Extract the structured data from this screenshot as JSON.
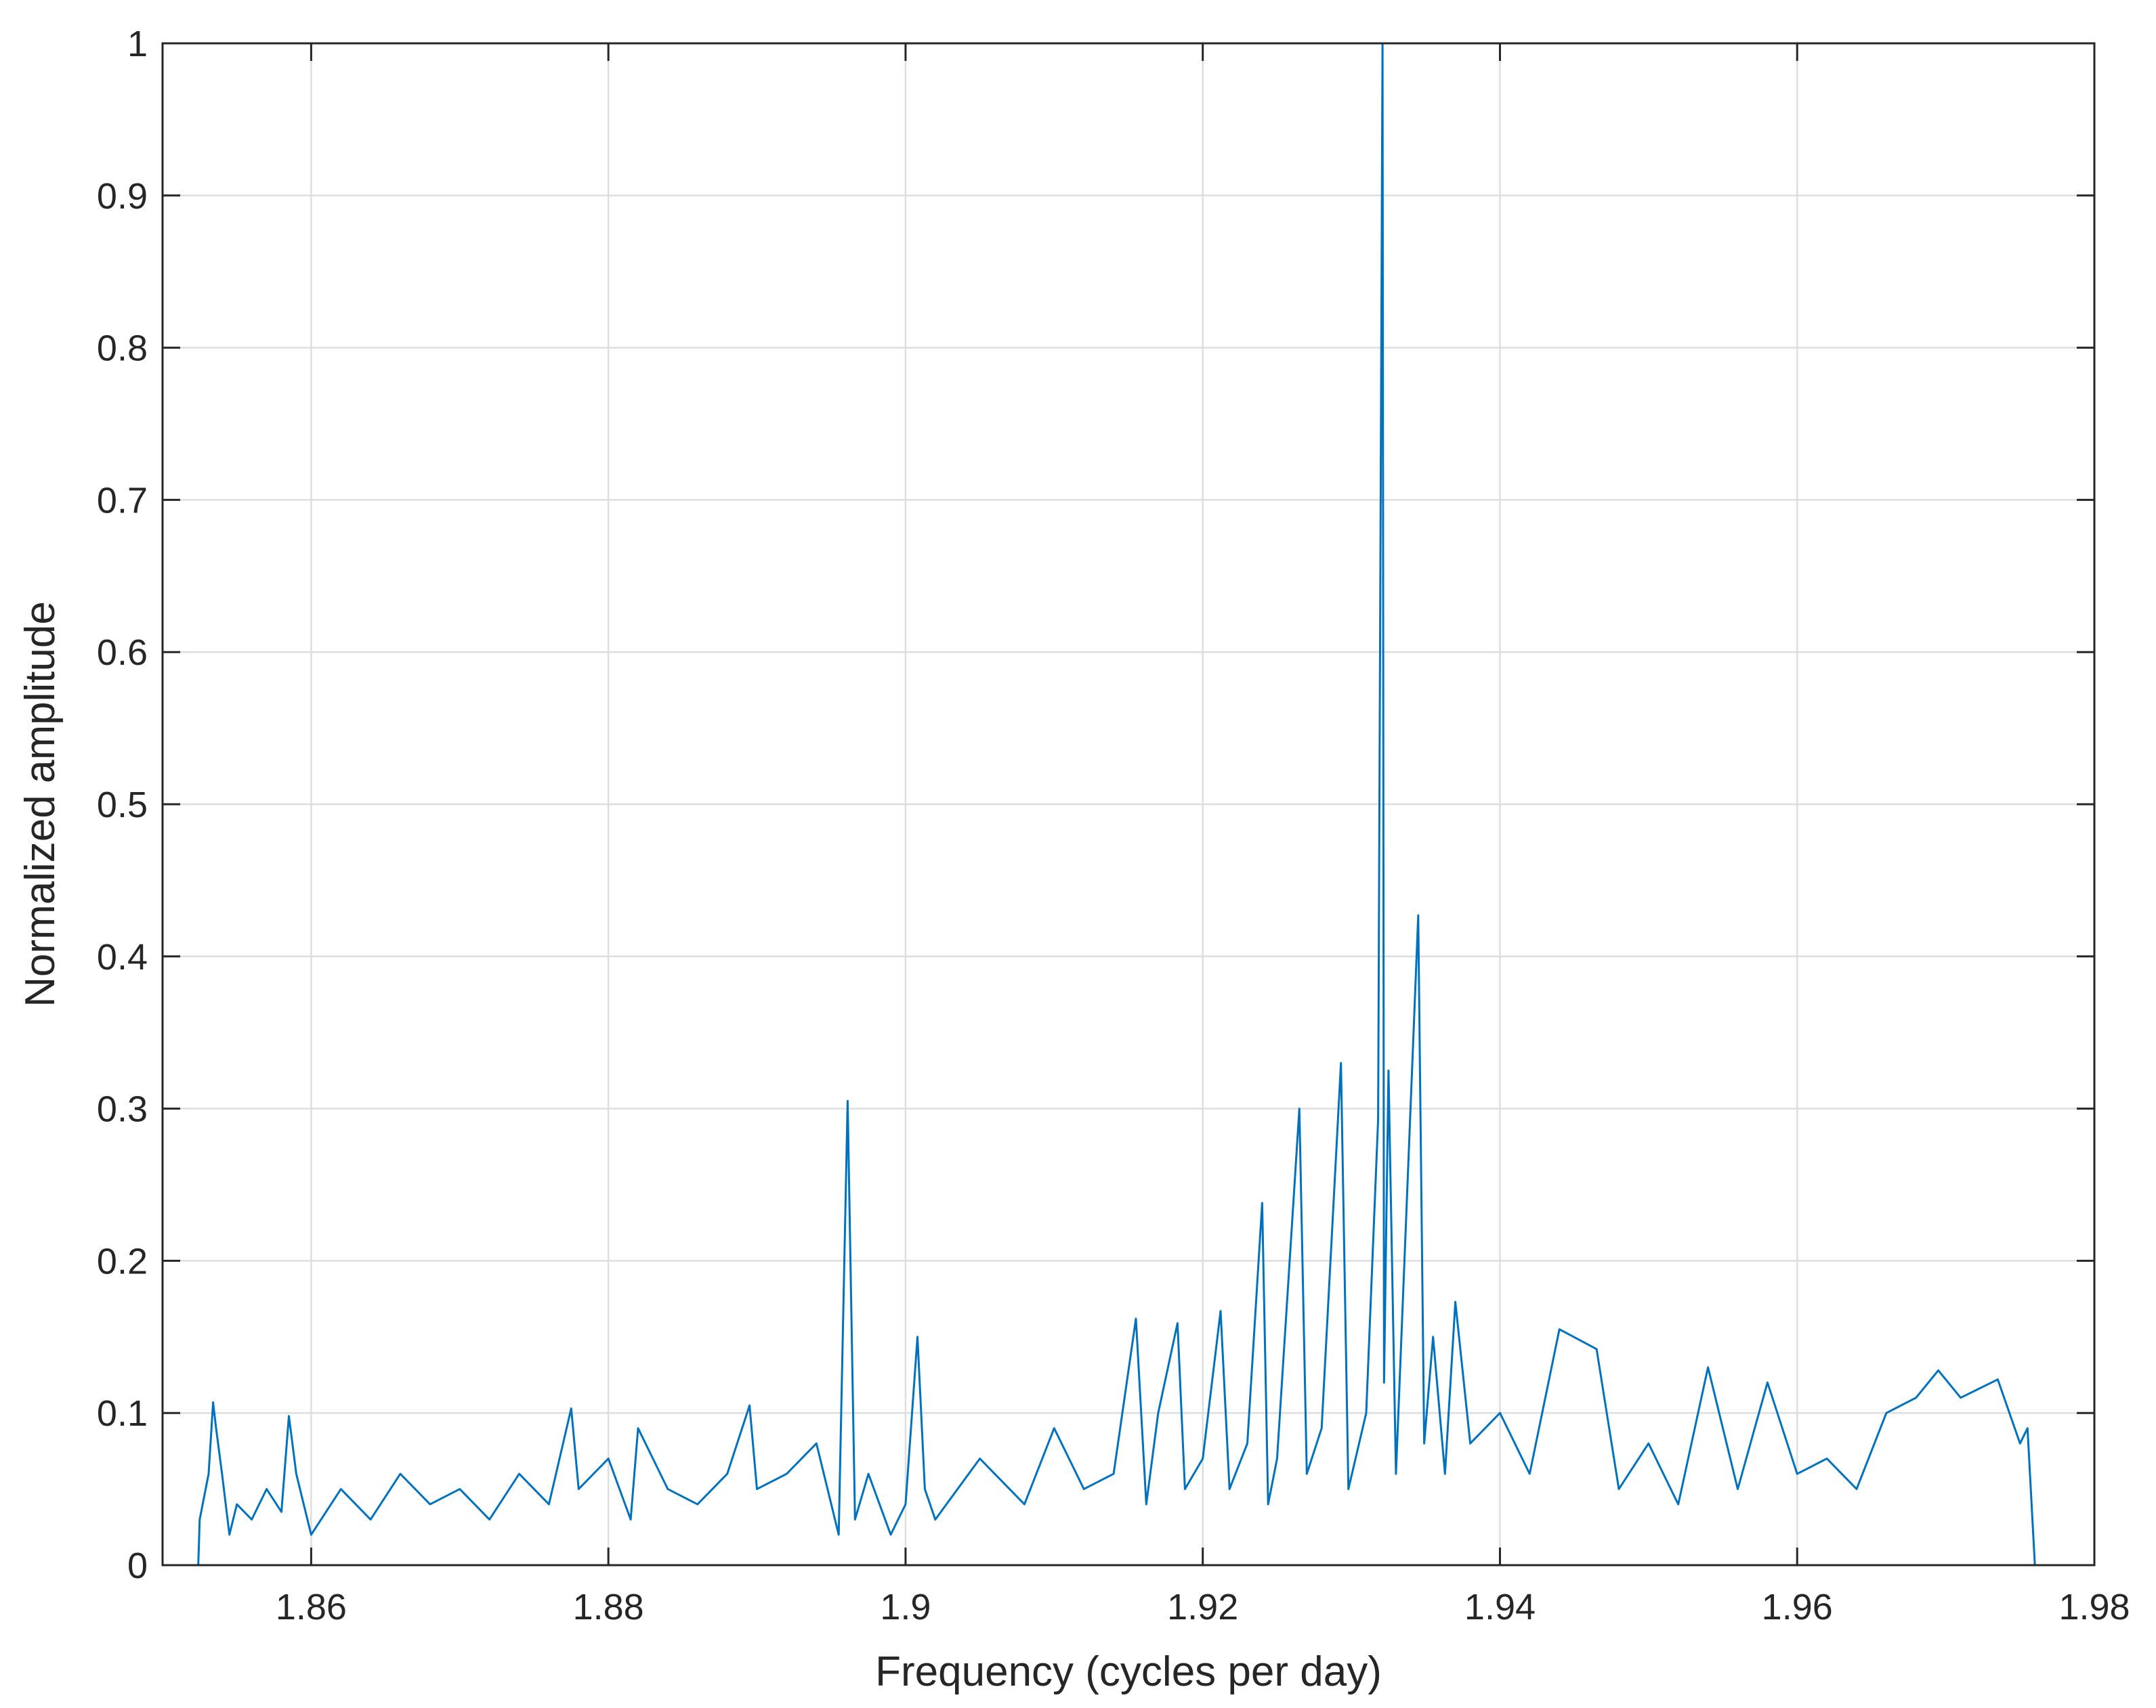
{
  "chart_data": {
    "type": "line",
    "title": "",
    "xlabel": "Frequency (cycles per day)",
    "ylabel": "Normalized amplitude",
    "xlim": [
      1.85,
      1.98
    ],
    "ylim": [
      0,
      1
    ],
    "xticks": [
      1.86,
      1.88,
      1.9,
      1.92,
      1.94,
      1.96,
      1.98
    ],
    "xtick_labels": [
      "1.86",
      "1.88",
      "1.9",
      "1.92",
      "1.94",
      "1.96",
      "1.98"
    ],
    "yticks": [
      0,
      0.1,
      0.2,
      0.3,
      0.4,
      0.5,
      0.6,
      0.7,
      0.8,
      0.9,
      1
    ],
    "ytick_labels": [
      "0",
      "0.1",
      "0.2",
      "0.3",
      "0.4",
      "0.5",
      "0.6",
      "0.7",
      "0.8",
      "0.9",
      "1"
    ],
    "grid": true,
    "line_color": "#0072BD",
    "series": [
      {
        "x": [
          1.85,
          1.8524,
          1.8525,
          1.8528,
          1.8531,
          1.8534,
          1.8536,
          1.854,
          1.8545,
          1.855,
          1.856,
          1.857,
          1.858,
          1.8585,
          1.859,
          1.8595,
          1.86,
          1.862,
          1.864,
          1.866,
          1.868,
          1.87,
          1.872,
          1.874,
          1.876,
          1.8775,
          1.878,
          1.88,
          1.8815,
          1.882,
          1.884,
          1.886,
          1.888,
          1.8895,
          1.89,
          1.892,
          1.894,
          1.8955,
          1.8961,
          1.8966,
          1.8975,
          1.899,
          1.9,
          1.9008,
          1.9013,
          1.902,
          1.905,
          1.908,
          1.91,
          1.912,
          1.914,
          1.9155,
          1.9162,
          1.917,
          1.9183,
          1.9188,
          1.92,
          1.9212,
          1.9218,
          1.923,
          1.924,
          1.9244,
          1.925,
          1.9265,
          1.927,
          1.928,
          1.9293,
          1.9298,
          1.931,
          1.9318,
          1.9321,
          1.9322,
          1.9325,
          1.933,
          1.9345,
          1.9349,
          1.9355,
          1.9363,
          1.937,
          1.938,
          1.94,
          1.942,
          1.944,
          1.9465,
          1.948,
          1.95,
          1.952,
          1.954,
          1.956,
          1.958,
          1.96,
          1.962,
          1.964,
          1.966,
          1.968,
          1.9695,
          1.971,
          1.9735,
          1.975,
          1.9755,
          1.976,
          1.98
        ],
        "y": [
          0,
          0,
          0.03,
          0.045,
          0.06,
          0.107,
          0.09,
          0.06,
          0.02,
          0.04,
          0.03,
          0.05,
          0.035,
          0.098,
          0.06,
          0.04,
          0.02,
          0.05,
          0.03,
          0.06,
          0.04,
          0.05,
          0.03,
          0.06,
          0.04,
          0.103,
          0.05,
          0.07,
          0.03,
          0.09,
          0.05,
          0.04,
          0.06,
          0.105,
          0.05,
          0.06,
          0.08,
          0.02,
          0.305,
          0.03,
          0.06,
          0.02,
          0.04,
          0.15,
          0.05,
          0.03,
          0.07,
          0.04,
          0.09,
          0.05,
          0.06,
          0.162,
          0.04,
          0.1,
          0.159,
          0.05,
          0.07,
          0.167,
          0.05,
          0.08,
          0.238,
          0.04,
          0.07,
          0.3,
          0.06,
          0.09,
          0.33,
          0.05,
          0.1,
          0.293,
          1.0,
          0.12,
          0.325,
          0.06,
          0.427,
          0.08,
          0.15,
          0.06,
          0.173,
          0.08,
          0.1,
          0.06,
          0.155,
          0.142,
          0.05,
          0.08,
          0.04,
          0.13,
          0.05,
          0.12,
          0.06,
          0.07,
          0.05,
          0.1,
          0.11,
          0.128,
          0.11,
          0.122,
          0.08,
          0.09,
          0,
          0
        ]
      }
    ]
  }
}
